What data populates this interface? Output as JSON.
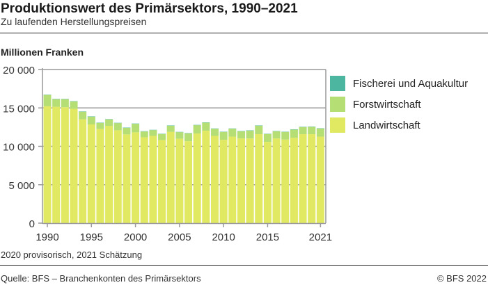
{
  "header": {
    "title": "Produktionswert des Primärsektors, 1990–2021",
    "subtitle": "Zu laufenden Herstellungspreisen"
  },
  "footer": {
    "note": "2020 provisorisch, 2021 Schätzung",
    "source": "Quelle: BFS – Branchenkonten des Primärsektors",
    "copyright": "© BFS 2022"
  },
  "chart_data": {
    "type": "bar",
    "stacked": true,
    "title": "Produktionswert des Primärsektors, 1990–2021",
    "subtitle": "Zu laufenden Herstellungspreisen",
    "ylabel": "Millionen Franken",
    "xlabel": "",
    "ylim": [
      0,
      20000
    ],
    "yticks": [
      0,
      5000,
      10000,
      15000,
      20000
    ],
    "ytick_labels": [
      "0",
      "5 000",
      "10 000",
      "15 000",
      "20 000"
    ],
    "xtick_labels": [
      "1990",
      "1995",
      "2000",
      "2005",
      "2010",
      "2015",
      "2021"
    ],
    "xtick_years": [
      1990,
      1995,
      2000,
      2005,
      2010,
      2015,
      2021
    ],
    "grid": true,
    "legend_placement": "right",
    "categories": [
      1990,
      1991,
      1992,
      1993,
      1994,
      1995,
      1996,
      1997,
      1998,
      1999,
      2000,
      2001,
      2002,
      2003,
      2004,
      2005,
      2006,
      2007,
      2008,
      2009,
      2010,
      2011,
      2012,
      2013,
      2014,
      2015,
      2016,
      2017,
      2018,
      2019,
      2020,
      2021
    ],
    "series": [
      {
        "name": "Landwirtschaft",
        "color": "#e1e963",
        "values": [
          15210,
          15150,
          15090,
          14880,
          13520,
          12850,
          12270,
          12670,
          12090,
          11550,
          11820,
          11180,
          11360,
          10820,
          11880,
          11000,
          10670,
          11670,
          12030,
          11360,
          10850,
          11270,
          11030,
          11030,
          11580,
          10580,
          11030,
          10880,
          11120,
          11580,
          11580,
          11270
        ]
      },
      {
        "name": "Forstwirtschaft",
        "color": "#b5df74",
        "values": [
          1480,
          990,
          1050,
          960,
          990,
          1020,
          780,
          840,
          930,
          860,
          1110,
          750,
          750,
          780,
          810,
          840,
          1020,
          1080,
          1050,
          930,
          1020,
          1020,
          930,
          1020,
          1110,
          1020,
          930,
          990,
          1050,
          930,
          950,
          1050
        ]
      },
      {
        "name": "Fischerei und Aquakultur",
        "color": "#4db6a0",
        "values": [
          40,
          40,
          40,
          40,
          40,
          40,
          40,
          40,
          40,
          40,
          40,
          40,
          40,
          40,
          40,
          40,
          40,
          40,
          40,
          40,
          40,
          40,
          40,
          40,
          40,
          40,
          40,
          40,
          40,
          40,
          40,
          40
        ]
      }
    ]
  }
}
